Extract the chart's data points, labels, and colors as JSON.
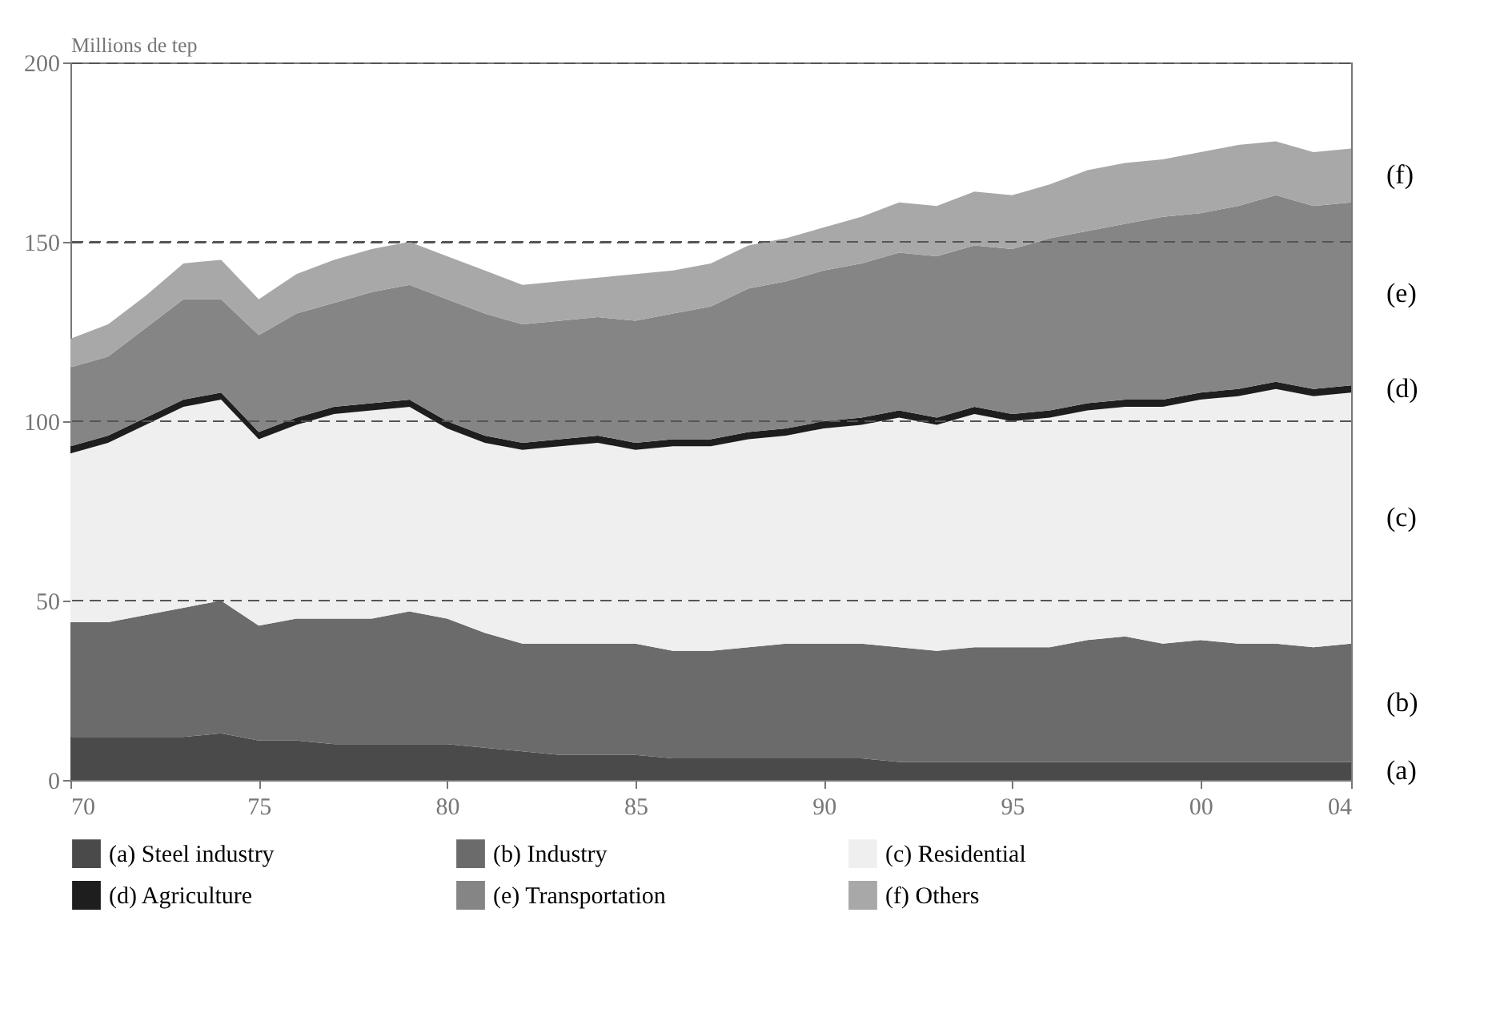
{
  "chart_data": {
    "type": "area",
    "ylabel": "Millions de tep",
    "stacked": true,
    "grid": "y",
    "legend": "bottom",
    "x": [
      1970,
      1971,
      1972,
      1973,
      1974,
      1975,
      1976,
      1977,
      1978,
      1979,
      1980,
      1981,
      1982,
      1983,
      1984,
      1985,
      1986,
      1987,
      1988,
      1989,
      1990,
      1991,
      1992,
      1993,
      1994,
      1995,
      1996,
      1997,
      1998,
      1999,
      2000,
      2001,
      2002,
      2003,
      2004
    ],
    "xlim": [
      1970,
      2004
    ],
    "xticks": [
      {
        "value": 1970,
        "label": "70"
      },
      {
        "value": 1975,
        "label": "75"
      },
      {
        "value": 1980,
        "label": "80"
      },
      {
        "value": 1985,
        "label": "85"
      },
      {
        "value": 1990,
        "label": "90"
      },
      {
        "value": 1995,
        "label": "95"
      },
      {
        "value": 2000,
        "label": "00"
      },
      {
        "value": 2004,
        "label": "04"
      }
    ],
    "ylim": [
      0,
      200
    ],
    "yticks": [
      0,
      50,
      100,
      150,
      200
    ],
    "series": [
      {
        "name": "(a) Steel industry",
        "color": "#4a4a4a",
        "values": [
          12,
          12,
          12,
          12,
          13,
          11,
          11,
          10,
          10,
          10,
          10,
          9,
          8,
          7,
          7,
          7,
          6,
          6,
          6,
          6,
          6,
          6,
          5,
          5,
          5,
          5,
          5,
          5,
          5,
          5,
          5,
          5,
          5,
          5,
          5
        ]
      },
      {
        "name": "(b) Industry",
        "color": "#6b6b6b",
        "values": [
          32,
          32,
          34,
          36,
          37,
          32,
          34,
          35,
          35,
          37,
          35,
          32,
          30,
          31,
          31,
          31,
          30,
          30,
          31,
          32,
          32,
          32,
          32,
          31,
          32,
          32,
          32,
          34,
          35,
          33,
          34,
          33,
          33,
          32,
          33
        ]
      },
      {
        "name": "(c) Residential",
        "color": "#efefef",
        "values": [
          47,
          50,
          53,
          56,
          56,
          52,
          54,
          57,
          58,
          57,
          53,
          53,
          54,
          55,
          56,
          54,
          57,
          57,
          58,
          58,
          60,
          61,
          64,
          63,
          65,
          63,
          64,
          64,
          64,
          66,
          67,
          69,
          71,
          70,
          70
        ]
      },
      {
        "name": "(d) Agriculture",
        "color": "#1e1e1e",
        "values": [
          2,
          2,
          2,
          2,
          2,
          2,
          2,
          2,
          2,
          2,
          2,
          2,
          2,
          2,
          2,
          2,
          2,
          2,
          2,
          2,
          2,
          2,
          2,
          2,
          2,
          2,
          2,
          2,
          2,
          2,
          2,
          2,
          2,
          2,
          2
        ]
      },
      {
        "name": "(e) Transportation",
        "color": "#858585",
        "values": [
          22,
          22,
          25,
          28,
          26,
          27,
          29,
          29,
          31,
          32,
          34,
          34,
          33,
          33,
          33,
          34,
          35,
          37,
          40,
          41,
          42,
          43,
          44,
          45,
          45,
          46,
          48,
          48,
          49,
          51,
          50,
          51,
          52,
          51,
          51
        ]
      },
      {
        "name": "(f) Others",
        "color": "#a8a8a8",
        "values": [
          8,
          9,
          9,
          10,
          11,
          10,
          11,
          12,
          12,
          12,
          12,
          12,
          11,
          11,
          11,
          13,
          12,
          12,
          12,
          12,
          12,
          13,
          14,
          14,
          15,
          15,
          15,
          17,
          17,
          16,
          17,
          17,
          15,
          15,
          15
        ]
      }
    ],
    "annotations": [
      "(a)",
      "(b)",
      "(c)",
      "(d)",
      "(e)",
      "(f)"
    ]
  }
}
